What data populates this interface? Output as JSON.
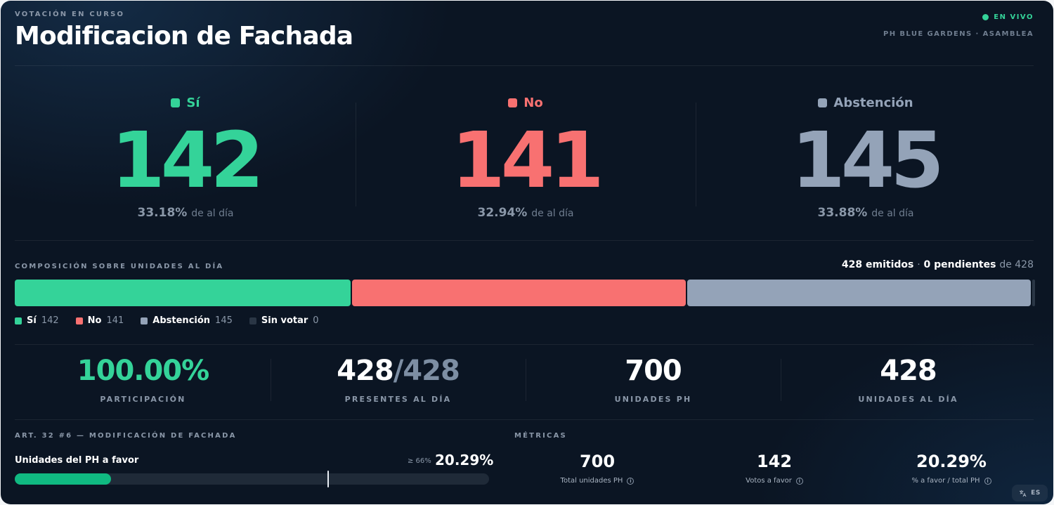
{
  "header": {
    "eyebrow": "VOTACIÓN EN CURSO",
    "title": "Modificacion de Fachada",
    "live_label": "EN VIVO",
    "organization": "PH BLUE GARDENS · ASAMBLEA"
  },
  "colors": {
    "yes": "#34d399",
    "no": "#f87171",
    "abstain": "#94a3b8",
    "pending": "#2a3645",
    "progress": "#10b981",
    "background": "#0b1523"
  },
  "votes": [
    {
      "label": "Sí",
      "count": "142",
      "percent": "33.18%",
      "suffix": "de al día",
      "color": "#34d399",
      "swatch": "#34d399"
    },
    {
      "label": "No",
      "count": "141",
      "percent": "32.94%",
      "suffix": "de al día",
      "color": "#f87171",
      "swatch": "#f87171"
    },
    {
      "label": "Abstención",
      "count": "145",
      "percent": "33.88%",
      "suffix": "de al día",
      "color": "#94a3b8",
      "swatch": "#94a3b8"
    }
  ],
  "composition": {
    "title": "COMPOSICIÓN SOBRE UNIDADES AL DÍA",
    "emitted": "428 emitidos",
    "separator": "·",
    "pending": "0 pendientes",
    "total_suffix": "de 428",
    "segments": [
      {
        "label": "Sí",
        "value": 142,
        "color": "#34d399"
      },
      {
        "label": "No",
        "value": 141,
        "color": "#f87171"
      },
      {
        "label": "Abstención",
        "value": 145,
        "color": "#94a3b8"
      },
      {
        "label": "Sin votar",
        "value": 0,
        "color": "#2a3645"
      }
    ],
    "legend": [
      {
        "label": "Sí",
        "count": "142",
        "color": "#34d399"
      },
      {
        "label": "No",
        "count": "141",
        "color": "#f87171"
      },
      {
        "label": "Abstención",
        "count": "145",
        "color": "#94a3b8"
      },
      {
        "label": "Sin votar",
        "count": "0",
        "color": "#2a3645"
      }
    ]
  },
  "stats": {
    "participation": {
      "value": "100.00%",
      "label": "PARTICIPACIÓN"
    },
    "present": {
      "value": "428",
      "slash": "/",
      "total": "428",
      "label": "PRESENTES AL DÍA"
    },
    "units_ph": {
      "value": "700",
      "label": "UNIDADES PH"
    },
    "units_day": {
      "value": "428",
      "label": "UNIDADES AL DÍA"
    }
  },
  "article": {
    "title": "ART. 32 #6 — MODIFICACIÓN DE FACHADA",
    "label": "Unidades del PH a favor",
    "threshold": "≥ 66%",
    "value": "20.29%",
    "progress_fraction": 0.2029,
    "threshold_fraction": 0.66
  },
  "metrics": {
    "title": "MÉTRICAS",
    "items": [
      {
        "value": "700",
        "label": "Total unidades PH"
      },
      {
        "value": "142",
        "label": "Votos a favor"
      },
      {
        "value": "20.29%",
        "label": "% a favor / total PH"
      }
    ],
    "info_glyph": "i"
  },
  "language": {
    "icon": "translate-icon",
    "label": "ES"
  }
}
